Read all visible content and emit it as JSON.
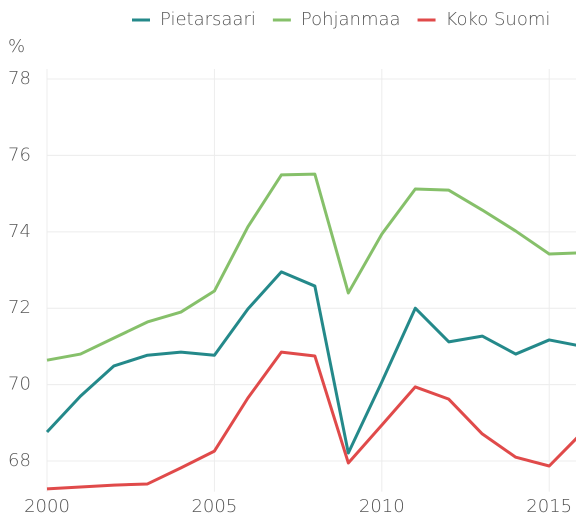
{
  "chart_data": {
    "type": "line",
    "y_label": "%",
    "x": [
      2000,
      2001,
      2002,
      2003,
      2004,
      2005,
      2006,
      2007,
      2008,
      2009,
      2010,
      2011,
      2012,
      2013,
      2014,
      2015,
      2016
    ],
    "series": [
      {
        "name": "Pietarsaari",
        "color": "#24898a",
        "values": [
          68.76,
          69.7,
          70.49,
          70.77,
          70.85,
          70.77,
          71.98,
          72.95,
          72.58,
          68.21,
          70.07,
          72.0,
          71.12,
          71.27,
          70.8,
          71.17,
          71.0
        ]
      },
      {
        "name": "Pohjanmaa",
        "color": "#86c06a",
        "values": [
          70.64,
          70.8,
          71.22,
          71.64,
          71.9,
          72.45,
          74.13,
          75.49,
          75.51,
          72.4,
          73.94,
          75.12,
          75.09,
          74.57,
          74.02,
          73.42,
          73.45
        ]
      },
      {
        "name": "Koko Suomi",
        "color": "#e04a4a",
        "values": [
          67.27,
          67.32,
          67.37,
          67.4,
          67.82,
          68.26,
          69.65,
          70.85,
          70.75,
          67.95,
          68.94,
          69.94,
          69.62,
          68.71,
          68.1,
          67.87,
          68.76
        ]
      }
    ],
    "xlim": [
      2000,
      2015.8
    ],
    "xticks": [
      2000,
      2005,
      2010,
      2015
    ],
    "ylim": [
      67.2,
      78
    ],
    "yticks": [
      68,
      70,
      72,
      74,
      76,
      78
    ],
    "grid": true,
    "legend": "top-right"
  }
}
